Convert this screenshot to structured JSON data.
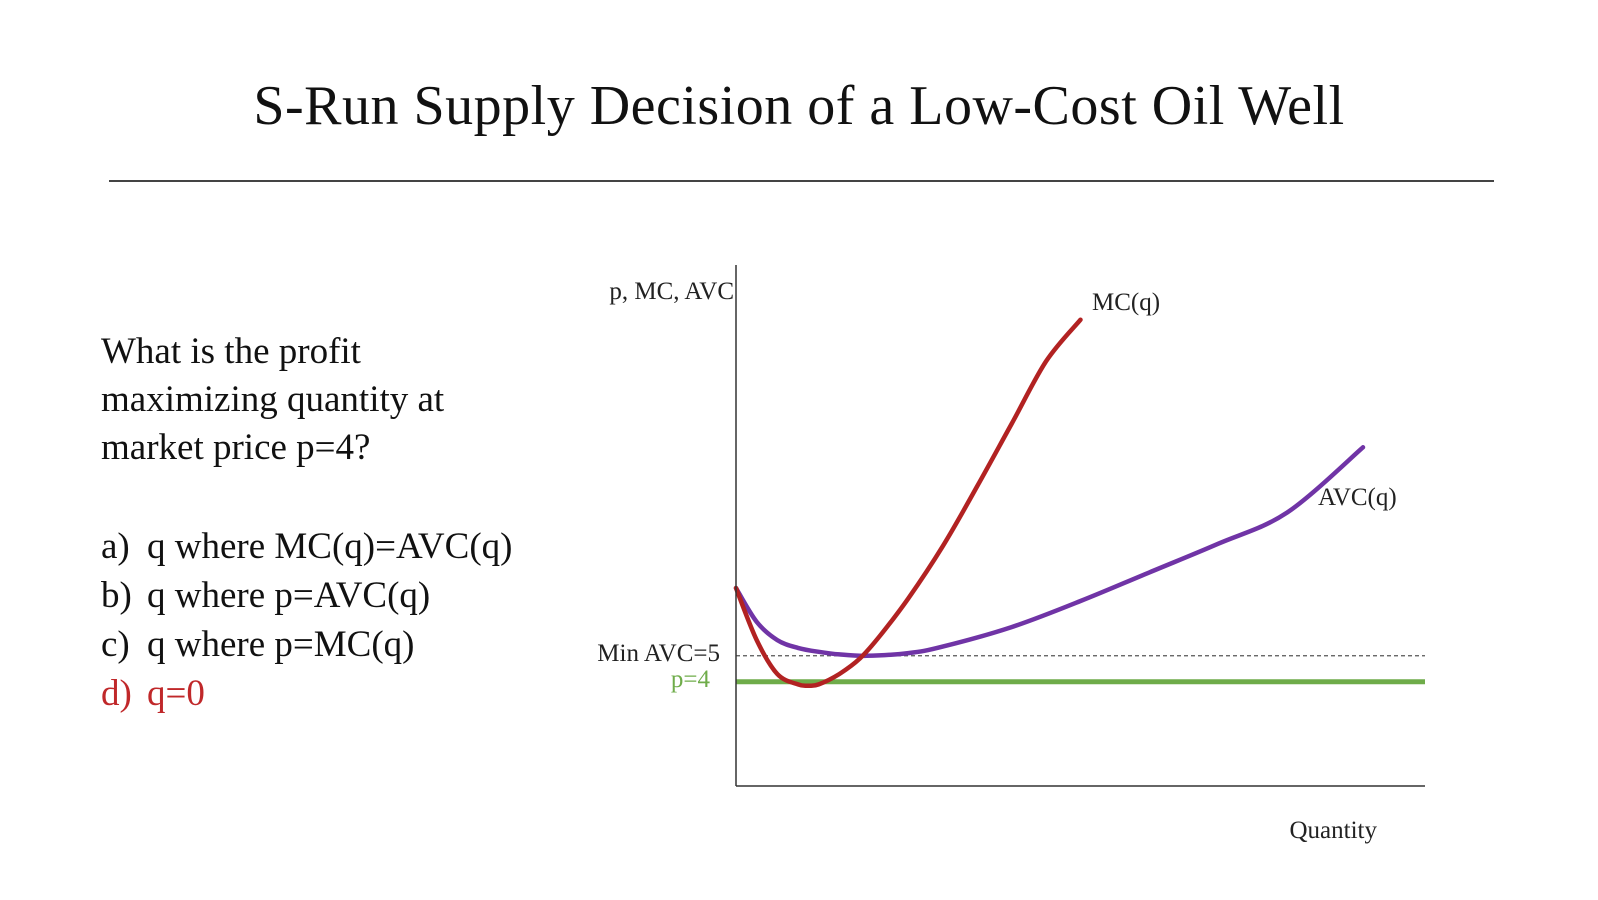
{
  "slide": {
    "title": "S-Run Supply Decision of a Low-Cost Oil Well"
  },
  "question": {
    "lines": [
      "What is the profit",
      "maximizing quantity at",
      "market price p=4?"
    ],
    "options": [
      {
        "letter": "a)",
        "text": "q where MC(q)=AVC(q)",
        "highlight": false
      },
      {
        "letter": "b)",
        "text": "q where p=AVC(q)",
        "highlight": false
      },
      {
        "letter": "c)",
        "text": "q where p=MC(q)",
        "highlight": false
      },
      {
        "letter": "d)",
        "text": "q=0",
        "highlight": true
      }
    ]
  },
  "colors": {
    "mc": "#b22222",
    "avc": "#7034a6",
    "price": "#6fac4a",
    "answer": "#c0282a",
    "axis": "#333333"
  },
  "chart_data": {
    "type": "line",
    "ylabel": "p, MC, AVC",
    "xlabel": "Quantity",
    "xlim": [
      0,
      10
    ],
    "ylim": [
      0,
      20
    ],
    "series": [
      {
        "name": "MC(q)",
        "x": [
          0,
          0.3,
          0.6,
          0.9,
          1.05,
          1.2,
          1.5,
          1.8,
          2.1,
          2.5,
          3,
          3.5,
          4,
          4.5,
          5
        ],
        "values": [
          7.6,
          5.6,
          4.3,
          3.9,
          3.85,
          3.9,
          4.3,
          4.9,
          5.8,
          7.2,
          9.2,
          11.5,
          13.9,
          16.3,
          17.9
        ]
      },
      {
        "name": "AVC(q)",
        "x": [
          0,
          0.3,
          0.6,
          0.9,
          1.2,
          1.5,
          1.9,
          2.5,
          3,
          4,
          5,
          6,
          7,
          8,
          9.1
        ],
        "values": [
          7.6,
          6.3,
          5.6,
          5.3,
          5.15,
          5.05,
          5.0,
          5.1,
          5.35,
          6.1,
          7.1,
          8.2,
          9.3,
          10.5,
          13.0
        ]
      }
    ],
    "reference_lines": [
      {
        "label": "Min AVC=5",
        "y": 5,
        "style": "dashed"
      },
      {
        "label": "p=4",
        "y": 4,
        "style": "solid"
      }
    ]
  }
}
